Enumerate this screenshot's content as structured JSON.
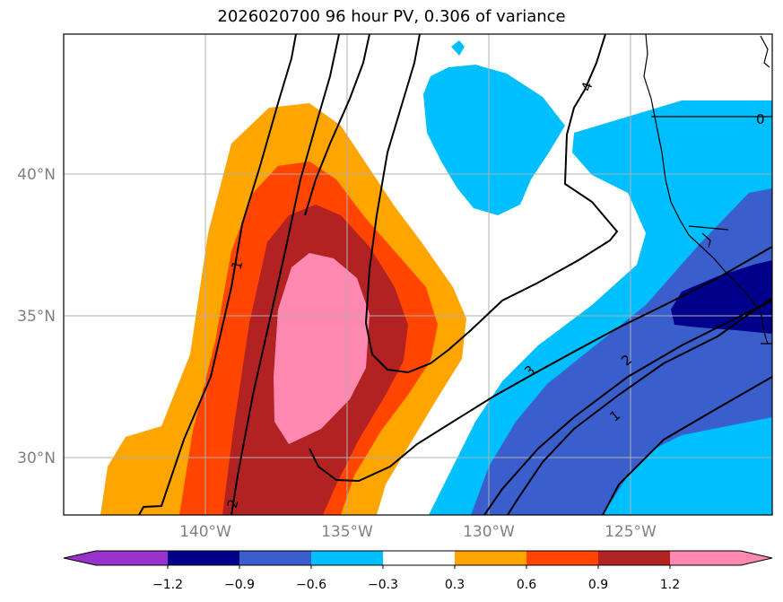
{
  "title": "2026020700 96 hour PV, 0.306 of variance",
  "map": {
    "x_ticks": [
      "140°W",
      "135°W",
      "130°W",
      "125°W"
    ],
    "y_ticks": [
      "40°N",
      "35°N",
      "30°N"
    ],
    "contour_labels": [
      "1",
      "4",
      "0",
      "3",
      "2",
      "1",
      "2"
    ]
  },
  "colorbar": {
    "levels": [
      "−1.2",
      "−0.9",
      "−0.6",
      "−0.3",
      "0.3",
      "0.6",
      "0.9",
      "1.2"
    ],
    "colors": [
      "#9932CC",
      "#00008B",
      "#3A5FCD",
      "#00BFFF",
      "#FFFFFF",
      "#FFA500",
      "#FF4500",
      "#B22222",
      "#FF88B0"
    ]
  },
  "colors": {
    "orange": "#FFA500",
    "orangered": "#FF4500",
    "firebrick": "#B22222",
    "pink": "#FF88B0",
    "deepskyblue": "#00BFFF",
    "royalblue": "#3A5FCD",
    "darkblue": "#00008B",
    "grid": "#B0B0B0"
  }
}
